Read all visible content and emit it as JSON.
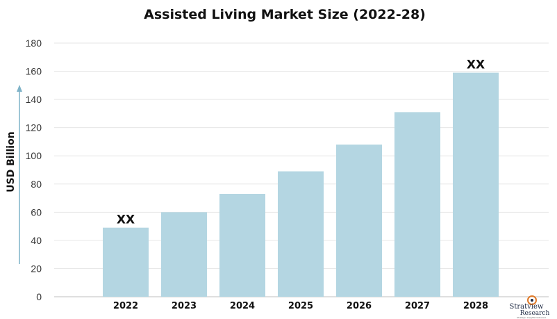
{
  "chart_data": {
    "type": "bar",
    "title": "Assisted Living Market Size (2022-28)",
    "xlabel": "",
    "ylabel": "USD Billion",
    "categories": [
      "2022",
      "2023",
      "2024",
      "2025",
      "2026",
      "2027",
      "2028"
    ],
    "values": [
      49,
      60,
      73,
      89,
      108,
      131,
      159
    ],
    "ylim": [
      0,
      180
    ],
    "yticks": [
      0,
      20,
      40,
      60,
      80,
      100,
      120,
      140,
      160,
      180
    ],
    "data_labels": [
      "XX",
      "",
      "",
      "",
      "",
      "",
      "XX"
    ],
    "bar_color": "#b4d6e2",
    "grid": true,
    "legend": "none"
  },
  "branding": {
    "logo_text": "Stratview",
    "logo_subtext": "Research",
    "logo_tagline": "Strategic Insights Delivered"
  },
  "colors": {
    "axis_arrow": "#7fb3c8",
    "grid": "#e6e6e6",
    "logo_accent": "#e07a2a"
  }
}
